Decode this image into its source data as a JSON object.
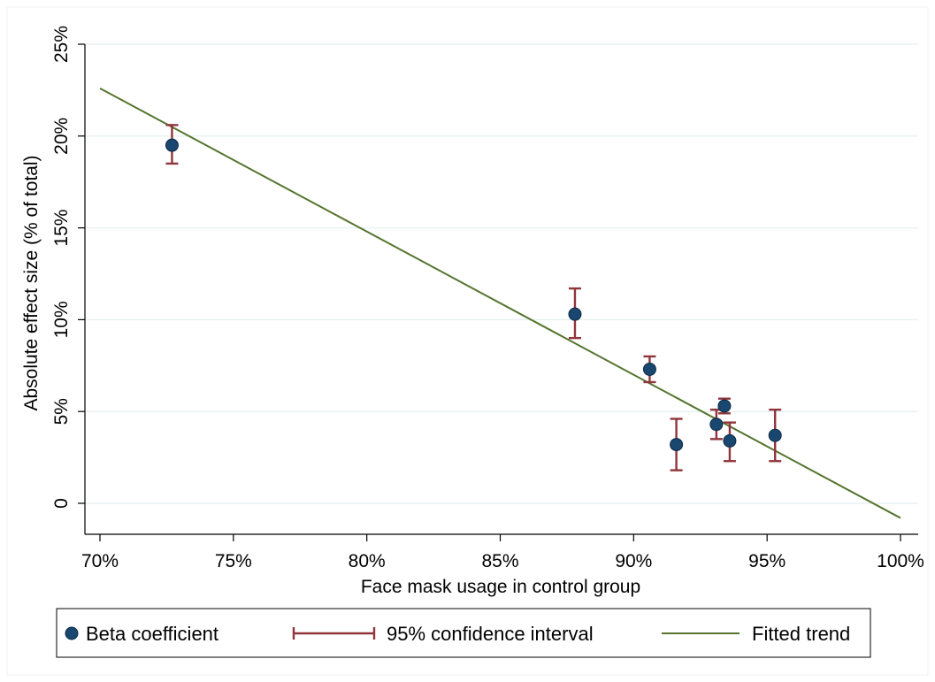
{
  "chart_data": {
    "type": "scatter",
    "title": "",
    "xlabel": "Face mask usage in control group",
    "ylabel": "Absolute effect size (% of total)",
    "xlim": [
      70,
      100
    ],
    "ylim": [
      0,
      25
    ],
    "x_ticks": [
      70,
      75,
      80,
      85,
      90,
      95,
      100
    ],
    "x_tick_labels": [
      "70%",
      "75%",
      "80%",
      "85%",
      "90%",
      "95%",
      "100%"
    ],
    "y_ticks": [
      0,
      5,
      10,
      15,
      20,
      25
    ],
    "y_tick_labels": [
      "0",
      "5%",
      "10%",
      "15%",
      "20%",
      "25%"
    ],
    "grid": "horizontal",
    "legend_position": "bottom",
    "series": [
      {
        "name": "Beta coefficient",
        "kind": "points",
        "color": "#1a476f",
        "points": [
          {
            "x": 72.7,
            "y": 19.5
          },
          {
            "x": 87.8,
            "y": 10.3
          },
          {
            "x": 90.6,
            "y": 7.3
          },
          {
            "x": 91.6,
            "y": 3.2
          },
          {
            "x": 93.1,
            "y": 4.3
          },
          {
            "x": 93.4,
            "y": 5.3
          },
          {
            "x": 93.6,
            "y": 3.4
          },
          {
            "x": 95.3,
            "y": 3.7
          }
        ]
      },
      {
        "name": "95% confidence interval",
        "kind": "errorbars",
        "color": "#90353b",
        "intervals": [
          {
            "x": 72.7,
            "low": 18.5,
            "high": 20.6
          },
          {
            "x": 87.8,
            "low": 9.0,
            "high": 11.7
          },
          {
            "x": 90.6,
            "low": 6.6,
            "high": 8.0
          },
          {
            "x": 91.6,
            "low": 1.8,
            "high": 4.6
          },
          {
            "x": 93.1,
            "low": 3.5,
            "high": 5.1
          },
          {
            "x": 93.4,
            "low": 4.9,
            "high": 5.7
          },
          {
            "x": 93.6,
            "low": 2.3,
            "high": 4.4
          },
          {
            "x": 95.3,
            "low": 2.3,
            "high": 5.1
          }
        ]
      },
      {
        "name": "Fitted trend",
        "kind": "line",
        "color": "#55752f",
        "points": [
          {
            "x": 70,
            "y": 22.6
          },
          {
            "x": 100,
            "y": -0.8
          }
        ]
      }
    ]
  }
}
